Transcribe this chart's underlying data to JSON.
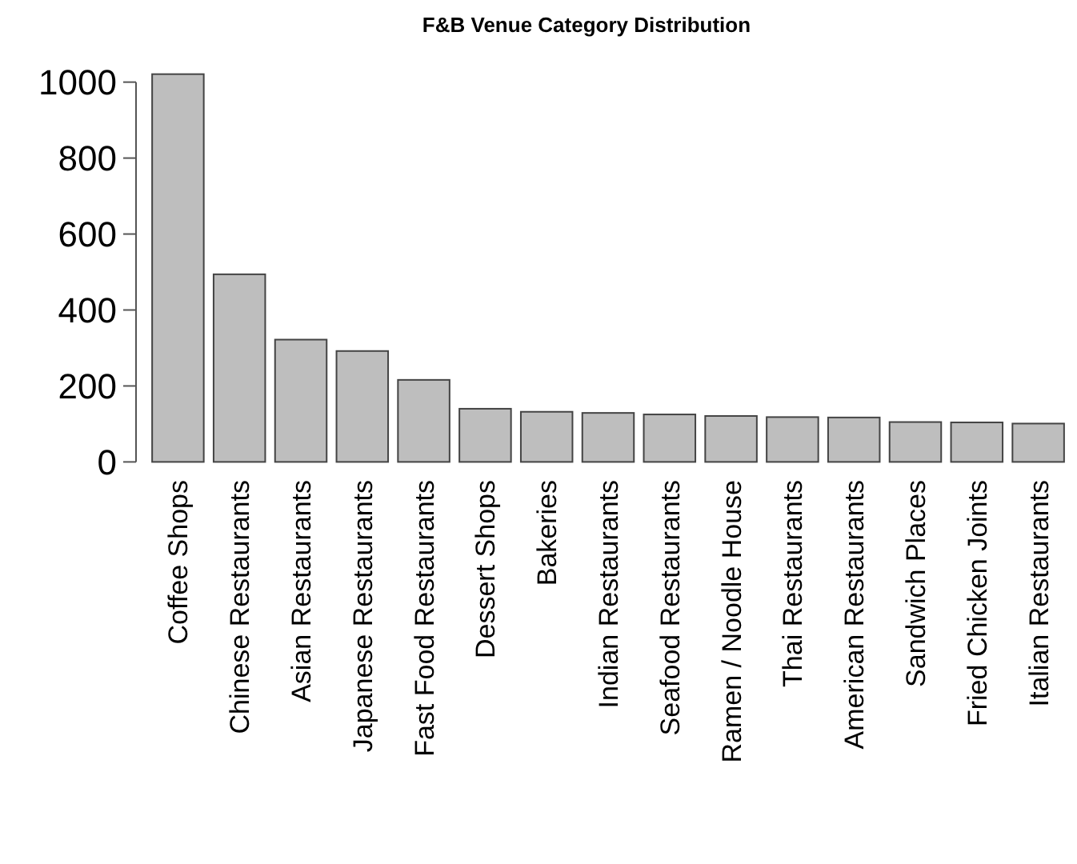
{
  "chart_data": {
    "type": "bar",
    "title": "F&B Venue Category Distribution",
    "categories": [
      "Coffee Shops",
      "Chinese Restaurants",
      "Asian Restaurants",
      "Japanese Restaurants",
      "Fast Food Restaurants",
      "Dessert Shops",
      "Bakeries",
      "Indian Restaurants",
      "Seafood Restaurants",
      "Ramen / Noodle House",
      "Thai Restaurants",
      "American Restaurants",
      "Sandwich Places",
      "Fried Chicken Joints",
      "Italian Restaurants"
    ],
    "values": [
      1021,
      494,
      322,
      292,
      216,
      140,
      132,
      129,
      125,
      121,
      118,
      117,
      105,
      104,
      101
    ],
    "color": "#bebebe",
    "ylim": [
      0,
      1030
    ],
    "yticks": [
      0,
      200,
      400,
      600,
      800,
      1000
    ],
    "grid": false
  }
}
